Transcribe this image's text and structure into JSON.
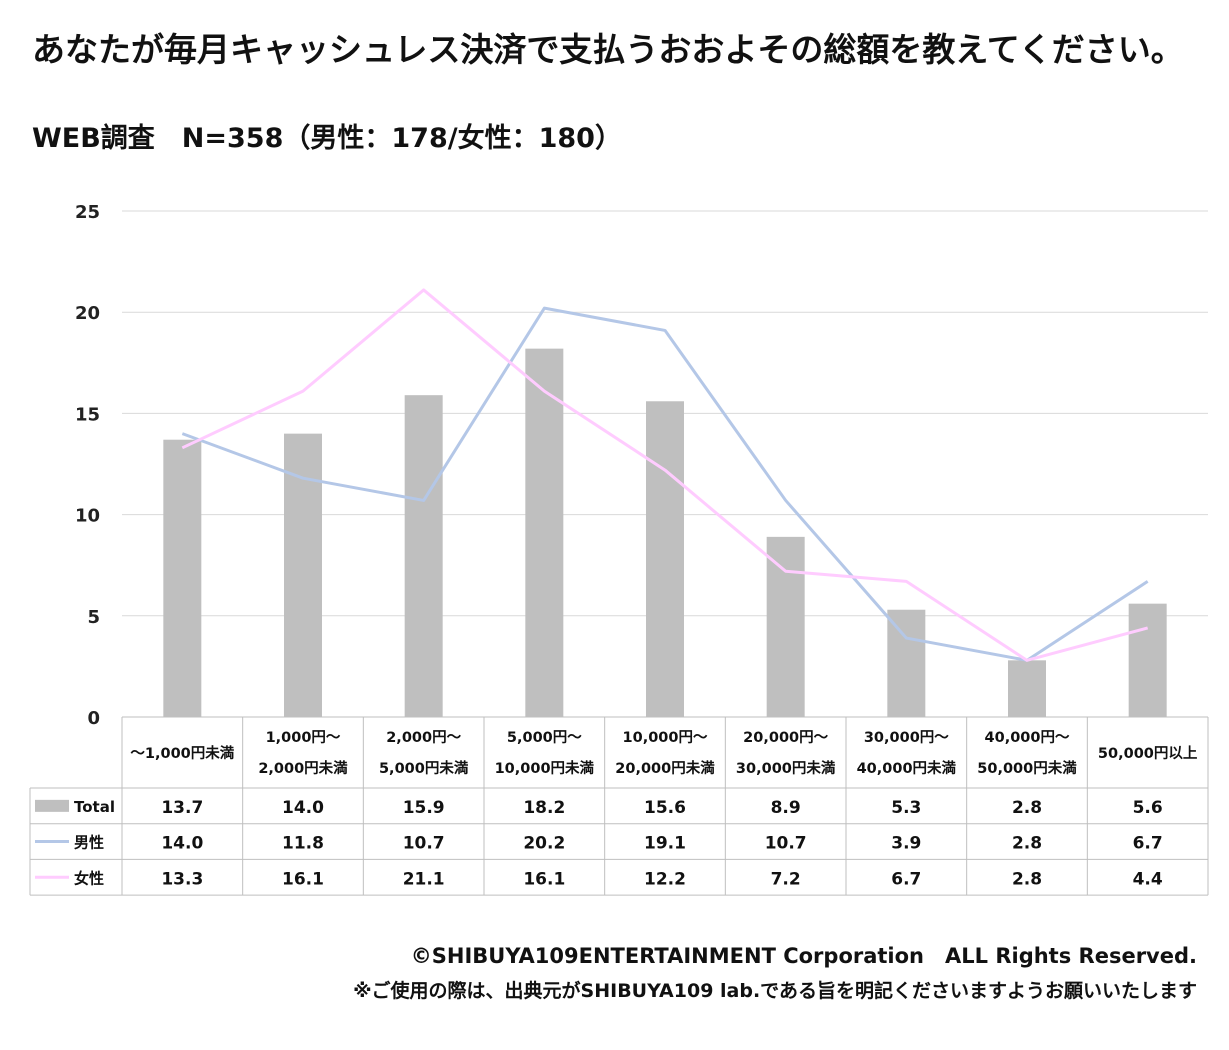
{
  "header": {
    "title": "あなたが毎月キャッシュレス決済で支払うおおよその総額を教えてください。",
    "subtitle": "WEB調査　N=358（男性：178/女性：180）"
  },
  "chart_data": {
    "type": "bar",
    "title": "あなたが毎月キャッシュレス決済で支払うおおよその総額を教えてください。",
    "categories": [
      [
        "〜1,000円未満"
      ],
      [
        "1,000円〜",
        "2,000円未満"
      ],
      [
        "2,000円〜",
        "5,000円未満"
      ],
      [
        "5,000円〜",
        "10,000円未満"
      ],
      [
        "10,000円〜",
        "20,000円未満"
      ],
      [
        "20,000円〜",
        "30,000円未満"
      ],
      [
        "30,000円〜",
        "40,000円未満"
      ],
      [
        "40,000円〜",
        "50,000円未満"
      ],
      [
        "50,000円以上"
      ]
    ],
    "series": [
      {
        "name": "Total",
        "type": "bar",
        "color": "#bfbfbf",
        "values": [
          13.7,
          14.0,
          15.9,
          18.2,
          15.6,
          8.9,
          5.3,
          2.8,
          5.6
        ],
        "labels": [
          "13.7",
          "14.0",
          "15.9",
          "18.2",
          "15.6",
          "8.9",
          "5.3",
          "2.8",
          "5.6"
        ]
      },
      {
        "name": "男性",
        "type": "line",
        "color": "#b4c7e7",
        "values": [
          14.0,
          11.8,
          10.7,
          20.2,
          19.1,
          10.7,
          3.9,
          2.8,
          6.7
        ],
        "labels": [
          "14.0",
          "11.8",
          "10.7",
          "20.2",
          "19.1",
          "10.7",
          "3.9",
          "2.8",
          "6.7"
        ]
      },
      {
        "name": "女性",
        "type": "line",
        "color": "#ffccff",
        "values": [
          13.3,
          16.1,
          21.1,
          16.1,
          12.2,
          7.2,
          6.7,
          2.8,
          4.4
        ],
        "labels": [
          "13.3",
          "16.1",
          "21.1",
          "16.1",
          "12.2",
          "7.2",
          "6.7",
          "2.8",
          "4.4"
        ]
      }
    ],
    "ylim": [
      0,
      25
    ],
    "yticks": [
      0,
      5,
      10,
      15,
      20,
      25
    ],
    "xlabel": "",
    "ylabel": "",
    "grid": true,
    "legend": "data-table"
  },
  "footer": {
    "copyright": "©SHIBUYA109ENTERTAINMENT Corporation　ALL Rights Reserved.",
    "note": "※ご使用の際は、出典元がSHIBUYA109 lab.である旨を明記くださいますようお願いいたします"
  }
}
